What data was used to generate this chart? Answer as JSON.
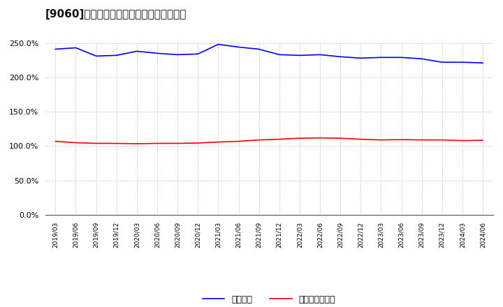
{
  "title": "[9060]　固定比率、固定長期適合率の推移",
  "x_labels": [
    "2019/03",
    "2019/06",
    "2019/09",
    "2019/12",
    "2020/03",
    "2020/06",
    "2020/09",
    "2020/12",
    "2021/03",
    "2021/06",
    "2021/09",
    "2021/12",
    "2022/03",
    "2022/06",
    "2022/09",
    "2022/12",
    "2023/03",
    "2023/06",
    "2023/09",
    "2023/12",
    "2024/03",
    "2024/06"
  ],
  "fixed_ratio": [
    241.0,
    243.0,
    231.0,
    232.0,
    238.0,
    235.0,
    233.0,
    234.0,
    248.0,
    244.0,
    241.0,
    233.0,
    232.0,
    233.0,
    230.0,
    228.0,
    229.0,
    229.0,
    227.0,
    222.0,
    222.0,
    221.0
  ],
  "fixed_long_ratio": [
    107.0,
    105.0,
    104.0,
    104.0,
    103.5,
    104.0,
    104.0,
    104.5,
    106.0,
    107.0,
    109.0,
    110.0,
    111.5,
    112.0,
    111.5,
    110.0,
    109.0,
    109.5,
    109.0,
    109.0,
    108.0,
    108.5
  ],
  "blue_color": "#0000FF",
  "red_color": "#FF0000",
  "bg_color": "#FFFFFF",
  "grid_color": "#AAAAAA",
  "legend_fixed": "固定比率",
  "legend_fixed_long": "固定長期適合率",
  "ylim": [
    0.0,
    250.0
  ],
  "yticks": [
    0.0,
    50.0,
    100.0,
    150.0,
    200.0,
    250.0
  ]
}
